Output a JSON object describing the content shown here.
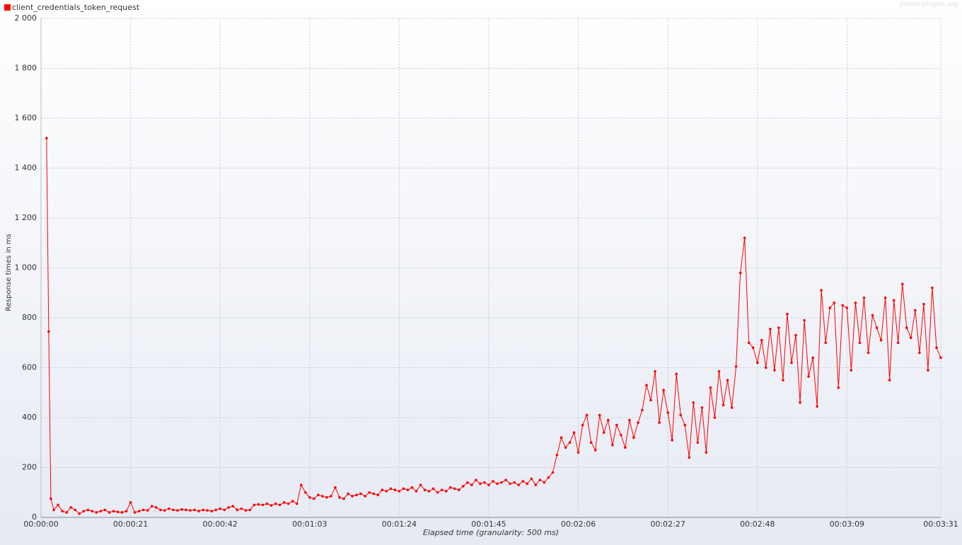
{
  "chart_data": {
    "type": "line",
    "legend": "client_credentials_token_request",
    "watermark": "jmeter-plugins.org",
    "xlabel": "Elapsed time (granularity: 500 ms)",
    "ylabel": "Response times in ms",
    "legend_position": "top-left",
    "grid": true,
    "xlim": [
      0,
      211
    ],
    "ylim": [
      0,
      2000
    ],
    "xticks": [
      {
        "value": 0,
        "label": "00:00:00"
      },
      {
        "value": 21,
        "label": "00:00:21"
      },
      {
        "value": 42,
        "label": "00:00:42"
      },
      {
        "value": 63,
        "label": "00:01:03"
      },
      {
        "value": 84,
        "label": "00:01:24"
      },
      {
        "value": 105,
        "label": "00:01:45"
      },
      {
        "value": 126,
        "label": "00:02:06"
      },
      {
        "value": 147,
        "label": "00:02:27"
      },
      {
        "value": 168,
        "label": "00:02:48"
      },
      {
        "value": 189,
        "label": "00:03:09"
      },
      {
        "value": 211,
        "label": "00:03:31"
      }
    ],
    "yticks": [
      0,
      200,
      400,
      600,
      800,
      {
        "value": 1000,
        "label": "1 000"
      },
      {
        "value": 1200,
        "label": "1 200"
      },
      {
        "value": 1400,
        "label": "1 400"
      },
      {
        "value": 1600,
        "label": "1 600"
      },
      {
        "value": 1800,
        "label": "1 800"
      },
      {
        "value": 2000,
        "label": "2 000"
      }
    ],
    "x": [
      1.3,
      1.8,
      2.3,
      3,
      4,
      5,
      6,
      7,
      8,
      9,
      10,
      11,
      12,
      13,
      14,
      15,
      16,
      17,
      18,
      19,
      20,
      21,
      22,
      23,
      24,
      25,
      26,
      27,
      28,
      29,
      30,
      31,
      32,
      33,
      34,
      35,
      36,
      37,
      38,
      39,
      40,
      41,
      42,
      43,
      44,
      45,
      46,
      47,
      48,
      49,
      50,
      51,
      52,
      53,
      54,
      55,
      56,
      57,
      58,
      59,
      60,
      61,
      62,
      63,
      64,
      65,
      66,
      67,
      68,
      69,
      70,
      71,
      72,
      73,
      74,
      75,
      76,
      77,
      78,
      79,
      80,
      81,
      82,
      83,
      84,
      85,
      86,
      87,
      88,
      89,
      90,
      91,
      92,
      93,
      94,
      95,
      96,
      97,
      98,
      99,
      100,
      101,
      102,
      103,
      104,
      105,
      106,
      107,
      108,
      109,
      110,
      111,
      112,
      113,
      114,
      115,
      116,
      117,
      118,
      119,
      120,
      121,
      122,
      123,
      124,
      125,
      126,
      127,
      128,
      129,
      130,
      131,
      132,
      133,
      134,
      135,
      136,
      137,
      138,
      139,
      140,
      141,
      142,
      143,
      144,
      145,
      146,
      147,
      148,
      149,
      150,
      151,
      152,
      153,
      154,
      155,
      156,
      157,
      158,
      159,
      160,
      161,
      162,
      163,
      164,
      165,
      166,
      167,
      168,
      169,
      170,
      171,
      172,
      173,
      174,
      175,
      176,
      177,
      178,
      179,
      180,
      181,
      182,
      183,
      184,
      185,
      186,
      187,
      188,
      189,
      190,
      191,
      192,
      193,
      194,
      195,
      196,
      197,
      198,
      199,
      200,
      201,
      202,
      203,
      204,
      205,
      206,
      207,
      208,
      209,
      210,
      211
    ],
    "series": [
      {
        "name": "client_credentials_token_request",
        "color": "#ff0000",
        "values": [
          1520,
          745,
          75,
          30,
          50,
          25,
          20,
          40,
          30,
          15,
          25,
          30,
          25,
          20,
          25,
          30,
          20,
          25,
          22,
          20,
          25,
          60,
          20,
          25,
          30,
          28,
          45,
          40,
          30,
          28,
          35,
          30,
          28,
          32,
          30,
          28,
          30,
          25,
          30,
          28,
          25,
          30,
          35,
          30,
          40,
          45,
          30,
          35,
          28,
          30,
          50,
          52,
          50,
          55,
          48,
          55,
          50,
          60,
          55,
          65,
          55,
          130,
          100,
          80,
          75,
          90,
          85,
          80,
          85,
          120,
          80,
          75,
          95,
          85,
          90,
          95,
          85,
          100,
          95,
          90,
          110,
          105,
          115,
          110,
          105,
          115,
          110,
          120,
          105,
          130,
          110,
          105,
          115,
          100,
          110,
          105,
          120,
          115,
          110,
          125,
          140,
          130,
          150,
          135,
          140,
          130,
          145,
          135,
          140,
          150,
          135,
          140,
          130,
          145,
          135,
          155,
          130,
          150,
          140,
          160,
          180,
          250,
          320,
          280,
          300,
          340,
          260,
          370,
          410,
          300,
          270,
          410,
          340,
          390,
          290,
          370,
          330,
          280,
          390,
          320,
          380,
          430,
          530,
          470,
          585,
          380,
          510,
          420,
          310,
          575,
          410,
          370,
          240,
          460,
          300,
          440,
          260,
          520,
          400,
          585,
          450,
          550,
          440,
          605,
          980,
          1120,
          700,
          680,
          620,
          710,
          600,
          755,
          590,
          760,
          550,
          815,
          620,
          730,
          460,
          790,
          565,
          640,
          445,
          910,
          700,
          840,
          860,
          520,
          850,
          840,
          590,
          860,
          700,
          880,
          660,
          810,
          760,
          710,
          880,
          550,
          870,
          700,
          935,
          760,
          720,
          830,
          660,
          855,
          590,
          920,
          680,
          640
        ]
      }
    ]
  }
}
